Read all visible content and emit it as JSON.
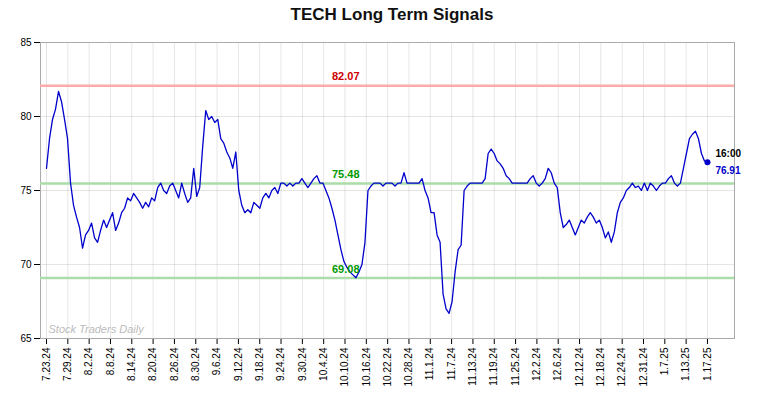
{
  "chart_data": {
    "type": "line",
    "title": "TECH Long Term Signals",
    "color": "#0000CC",
    "grid": true,
    "xlim": [
      -2,
      229
    ],
    "xticks": [
      {
        "value": 0,
        "label": "7.23.24"
      },
      {
        "value": 7.0968,
        "label": "7.29.24"
      },
      {
        "value": 14.1935,
        "label": "8.2.24"
      },
      {
        "value": 21.2903,
        "label": "8.8.24"
      },
      {
        "value": 28.3871,
        "label": "8.14.24"
      },
      {
        "value": 35.4839,
        "label": "8.20.24"
      },
      {
        "value": 42.5806,
        "label": "8.26.24"
      },
      {
        "value": 49.6774,
        "label": "8.30.24"
      },
      {
        "value": 56.7742,
        "label": "9.6.24"
      },
      {
        "value": 63.871,
        "label": "9.12.24"
      },
      {
        "value": 70.9677,
        "label": "9.18.24"
      },
      {
        "value": 78.0645,
        "label": "9.24.24"
      },
      {
        "value": 85.1613,
        "label": "9.30.24"
      },
      {
        "value": 92.2581,
        "label": "10.4.24"
      },
      {
        "value": 99.3548,
        "label": "10.10.24"
      },
      {
        "value": 106.4516,
        "label": "10.16.24"
      },
      {
        "value": 113.5484,
        "label": "10.22.24"
      },
      {
        "value": 120.6452,
        "label": "10.28.24"
      },
      {
        "value": 127.7419,
        "label": "11.1.24"
      },
      {
        "value": 134.8387,
        "label": "11.7.24"
      },
      {
        "value": 141.9355,
        "label": "11.13.24"
      },
      {
        "value": 149.0323,
        "label": "11.19.24"
      },
      {
        "value": 156.129,
        "label": "11.25.24"
      },
      {
        "value": 163.2258,
        "label": "12.2.24"
      },
      {
        "value": 170.3226,
        "label": "12.6.24"
      },
      {
        "value": 177.4194,
        "label": "12.12.24"
      },
      {
        "value": 184.5161,
        "label": "12.18.24"
      },
      {
        "value": 191.6129,
        "label": "12.24.24"
      },
      {
        "value": 198.7097,
        "label": "12.31.24"
      },
      {
        "value": 205.8065,
        "label": "1.7.25"
      },
      {
        "value": 212.9032,
        "label": "1.13.25"
      },
      {
        "value": 220,
        "label": "1.17.25"
      }
    ],
    "ylim": [
      65,
      85
    ],
    "yticks": [
      65,
      70,
      75,
      80,
      85
    ],
    "x": [
      0,
      1,
      2,
      3,
      4,
      5,
      6,
      7,
      8,
      9,
      10,
      11,
      12,
      13,
      14,
      15,
      16,
      17,
      18,
      19,
      20,
      21,
      22,
      23,
      24,
      25,
      26,
      27,
      28,
      29,
      30,
      31,
      32,
      33,
      34,
      35,
      36,
      37,
      38,
      39,
      40,
      41,
      42,
      43,
      44,
      45,
      46,
      47,
      48,
      49,
      50,
      51,
      52,
      53,
      54,
      55,
      56,
      57,
      58,
      59,
      60,
      61,
      62,
      63,
      64,
      65,
      66,
      67,
      68,
      69,
      70,
      71,
      72,
      73,
      74,
      75,
      76,
      77,
      78,
      79,
      80,
      81,
      82,
      83,
      84,
      85,
      86,
      87,
      88,
      89,
      90,
      91,
      92,
      93,
      94,
      95,
      96,
      97,
      98,
      99,
      100,
      101,
      102,
      103,
      104,
      105,
      106,
      107,
      108,
      109,
      110,
      111,
      112,
      113,
      114,
      115,
      116,
      117,
      118,
      119,
      120,
      121,
      122,
      123,
      124,
      125,
      126,
      127,
      128,
      129,
      130,
      131,
      132,
      133,
      134,
      135,
      136,
      137,
      138,
      139,
      140,
      141,
      142,
      143,
      144,
      145,
      146,
      147,
      148,
      149,
      150,
      151,
      152,
      153,
      154,
      155,
      156,
      157,
      158,
      159,
      160,
      161,
      162,
      163,
      164,
      165,
      166,
      167,
      168,
      169,
      170,
      171,
      172,
      173,
      174,
      175,
      176,
      177,
      178,
      179,
      180,
      181,
      182,
      183,
      184,
      185,
      186,
      187,
      188,
      189,
      190,
      191,
      192,
      193,
      194,
      195,
      196,
      197,
      198,
      199,
      200,
      201,
      202,
      203,
      204,
      205,
      206,
      207,
      208,
      209,
      210,
      211,
      212,
      213,
      214,
      215,
      216,
      217,
      218,
      219,
      220
    ],
    "values": [
      76.5,
      78.5,
      79.8,
      80.5,
      81.7,
      81.0,
      79.8,
      78.5,
      75.5,
      74.0,
      73.2,
      72.5,
      71.1,
      72.0,
      72.3,
      72.8,
      71.8,
      71.5,
      72.3,
      73.0,
      72.5,
      73.0,
      73.5,
      72.3,
      72.8,
      73.5,
      73.8,
      74.5,
      74.3,
      74.8,
      74.5,
      74.2,
      73.8,
      74.2,
      73.9,
      74.5,
      74.3,
      75.2,
      75.5,
      75.0,
      74.8,
      75.3,
      75.5,
      75.0,
      74.5,
      75.5,
      74.8,
      74.2,
      74.5,
      76.5,
      74.6,
      75.2,
      78.0,
      80.4,
      79.8,
      80.0,
      79.6,
      79.8,
      78.5,
      78.2,
      77.6,
      77.2,
      76.5,
      77.6,
      75.0,
      74.0,
      73.5,
      73.7,
      73.5,
      74.2,
      74.0,
      73.8,
      74.5,
      74.8,
      74.5,
      75.0,
      75.2,
      74.8,
      75.5,
      75.5,
      75.3,
      75.5,
      75.3,
      75.5,
      75.5,
      75.8,
      75.5,
      75.2,
      75.5,
      75.8,
      76.0,
      75.5,
      75.5,
      75.0,
      74.5,
      73.8,
      73.0,
      72.0,
      71.0,
      70.2,
      69.8,
      69.5,
      69.3,
      69.1,
      69.5,
      70.0,
      71.5,
      75.0,
      75.3,
      75.5,
      75.5,
      75.5,
      75.3,
      75.5,
      75.5,
      75.5,
      75.3,
      75.5,
      75.5,
      76.2,
      75.5,
      75.5,
      75.5,
      75.5,
      75.5,
      75.8,
      75.0,
      74.5,
      73.5,
      73.5,
      72.0,
      71.5,
      68.0,
      67.0,
      66.7,
      67.5,
      69.5,
      71.0,
      71.3,
      75.0,
      75.3,
      75.5,
      75.5,
      75.5,
      75.5,
      75.5,
      75.8,
      77.5,
      77.8,
      77.5,
      77.0,
      76.8,
      76.5,
      76.0,
      75.8,
      75.5,
      75.5,
      75.5,
      75.5,
      75.5,
      75.5,
      75.8,
      76.0,
      75.5,
      75.3,
      75.5,
      75.8,
      76.5,
      76.2,
      75.5,
      75.2,
      73.5,
      72.5,
      72.7,
      73.0,
      72.5,
      72.0,
      72.5,
      73.0,
      72.8,
      73.2,
      73.5,
      73.2,
      72.8,
      73.0,
      72.5,
      71.8,
      72.2,
      71.5,
      72.2,
      73.5,
      74.2,
      74.5,
      75.0,
      75.2,
      75.5,
      75.2,
      75.3,
      75.0,
      75.5,
      75.0,
      75.5,
      75.3,
      75.0,
      75.3,
      75.5,
      75.5,
      75.8,
      76.0,
      75.5,
      75.3,
      75.5,
      76.5,
      77.5,
      78.5,
      78.8,
      79.0,
      78.5,
      77.5,
      77.0,
      76.91
    ],
    "hlines": [
      {
        "value": 82.07,
        "color": "#FFAAAA",
        "label": "82.07",
        "label_color": "#CC0000"
      },
      {
        "value": 75.48,
        "color": "#AADDAA",
        "label": "75.48",
        "label_color": "#009900"
      },
      {
        "value": 69.08,
        "color": "#AADDAA",
        "label": "69.08",
        "label_color": "#009900"
      }
    ],
    "last_point": {
      "x": 220,
      "value": 76.91,
      "label": "76.91",
      "time": "16:00",
      "color": "#0000CC"
    },
    "watermark": {
      "text": "Stock Traders Daily",
      "color": "#BBBBBB"
    }
  }
}
